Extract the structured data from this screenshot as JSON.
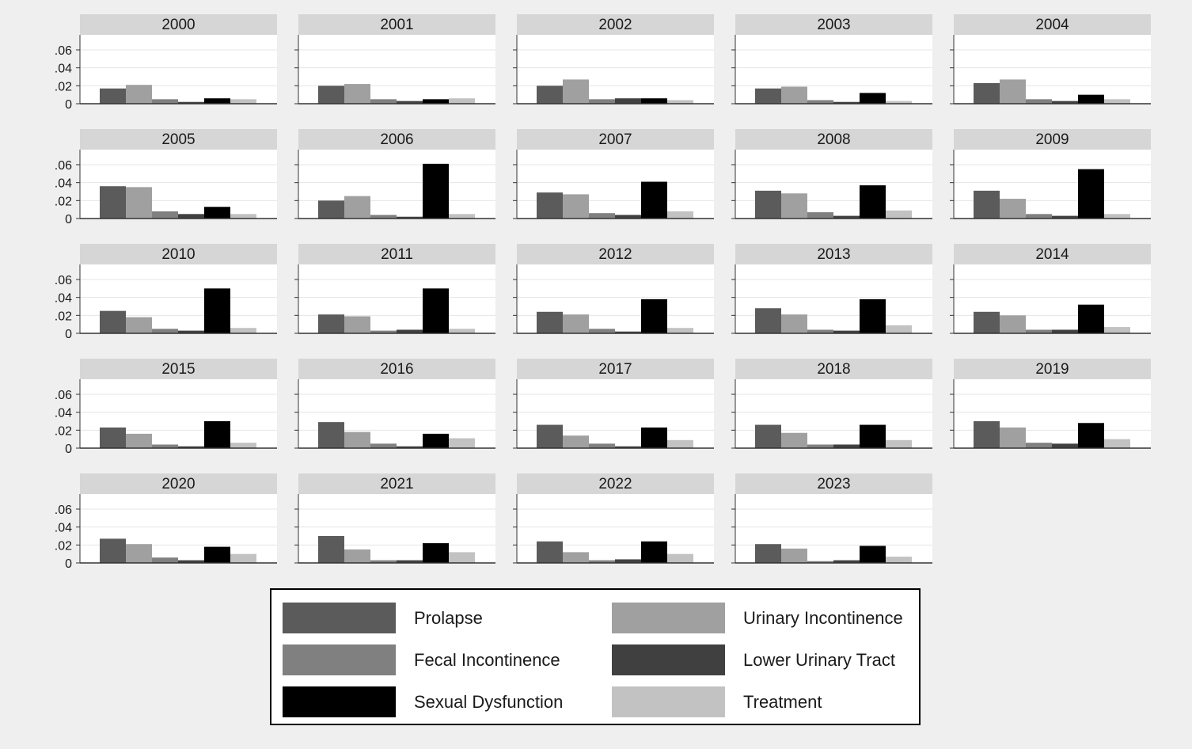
{
  "chart_data": {
    "type": "bar",
    "layout": "small-multiples",
    "panel_by": "year",
    "panels": [
      "2000",
      "2001",
      "2002",
      "2003",
      "2004",
      "2005",
      "2006",
      "2007",
      "2008",
      "2009",
      "2010",
      "2011",
      "2012",
      "2013",
      "2014",
      "2015",
      "2016",
      "2017",
      "2018",
      "2019",
      "2020",
      "2021",
      "2022",
      "2023"
    ],
    "series": [
      {
        "name": "Prolapse",
        "color": "#5b5b5b",
        "values": [
          0.017,
          0.02,
          0.02,
          0.017,
          0.023,
          0.036,
          0.02,
          0.029,
          0.031,
          0.031,
          0.025,
          0.021,
          0.024,
          0.028,
          0.024,
          0.023,
          0.029,
          0.026,
          0.026,
          0.03,
          0.027,
          0.03,
          0.024,
          0.021
        ]
      },
      {
        "name": "Urinary Incontinence",
        "color": "#a0a0a0",
        "values": [
          0.021,
          0.022,
          0.027,
          0.019,
          0.027,
          0.035,
          0.025,
          0.027,
          0.028,
          0.022,
          0.018,
          0.019,
          0.021,
          0.021,
          0.02,
          0.016,
          0.018,
          0.014,
          0.017,
          0.023,
          0.021,
          0.015,
          0.012,
          0.016
        ]
      },
      {
        "name": "Fecal Incontinence",
        "color": "#808080",
        "values": [
          0.005,
          0.005,
          0.005,
          0.004,
          0.005,
          0.008,
          0.004,
          0.006,
          0.007,
          0.005,
          0.005,
          0.003,
          0.005,
          0.004,
          0.004,
          0.004,
          0.005,
          0.005,
          0.004,
          0.006,
          0.006,
          0.003,
          0.003,
          0.002
        ]
      },
      {
        "name": "Lower Urinary Tract",
        "color": "#404040",
        "values": [
          0.002,
          0.003,
          0.006,
          0.002,
          0.003,
          0.005,
          0.002,
          0.004,
          0.003,
          0.003,
          0.003,
          0.004,
          0.002,
          0.003,
          0.004,
          0.002,
          0.002,
          0.002,
          0.004,
          0.005,
          0.003,
          0.003,
          0.004,
          0.003
        ]
      },
      {
        "name": "Sexual Dysfunction",
        "color": "#000000",
        "values": [
          0.006,
          0.005,
          0.006,
          0.012,
          0.01,
          0.013,
          0.061,
          0.041,
          0.037,
          0.055,
          0.05,
          0.05,
          0.038,
          0.038,
          0.032,
          0.03,
          0.016,
          0.023,
          0.026,
          0.028,
          0.018,
          0.022,
          0.024,
          0.019
        ]
      },
      {
        "name": "Treatment",
        "color": "#c2c2c2",
        "values": [
          0.005,
          0.006,
          0.004,
          0.003,
          0.005,
          0.005,
          0.005,
          0.008,
          0.009,
          0.005,
          0.006,
          0.005,
          0.006,
          0.009,
          0.007,
          0.006,
          0.011,
          0.009,
          0.009,
          0.01,
          0.01,
          0.012,
          0.01,
          0.007
        ]
      }
    ],
    "yticks": [
      0,
      0.02,
      0.04,
      0.06
    ],
    "ytick_labels": [
      "0",
      ".02",
      ".04",
      ".06"
    ],
    "ylim": [
      0,
      0.075
    ],
    "grid": true,
    "legend_position": "bottom-center",
    "legend_columns": 2
  },
  "legend": {
    "items": [
      {
        "label": "Prolapse",
        "color": "#5b5b5b"
      },
      {
        "label": "Urinary Incontinence",
        "color": "#a0a0a0"
      },
      {
        "label": "Fecal Incontinence",
        "color": "#808080"
      },
      {
        "label": "Lower Urinary Tract",
        "color": "#404040"
      },
      {
        "label": "Sexual Dysfunction",
        "color": "#000000"
      },
      {
        "label": "Treatment",
        "color": "#c2c2c2"
      }
    ]
  }
}
